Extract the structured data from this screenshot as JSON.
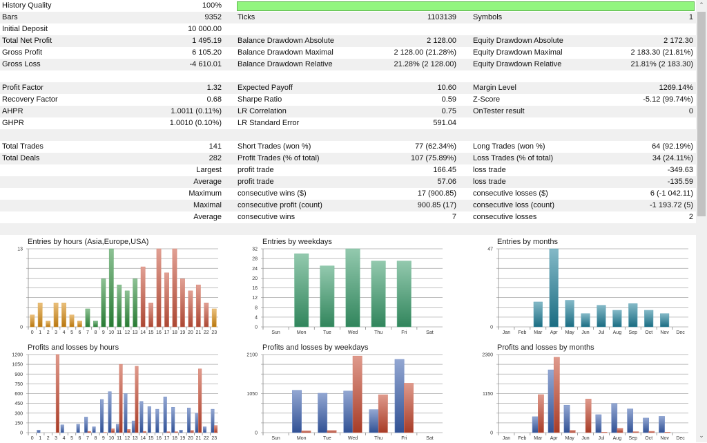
{
  "history_quality": {
    "label": "History Quality",
    "value": "100%",
    "progress_percent": 100,
    "color": "#92f57f"
  },
  "rows": [
    [
      "Bars",
      "9352",
      "Ticks",
      "1103139",
      "Symbols",
      "1"
    ],
    [
      "Initial Deposit",
      "10 000.00",
      "",
      "",
      "",
      ""
    ],
    [
      "Total Net Profit",
      "1 495.19",
      "Balance Drawdown Absolute",
      "2 128.00",
      "Equity Drawdown Absolute",
      "2 172.30"
    ],
    [
      "Gross Profit",
      "6 105.20",
      "Balance Drawdown Maximal",
      "2 128.00 (21.28%)",
      "Equity Drawdown Maximal",
      "2 183.30 (21.81%)"
    ],
    [
      "Gross Loss",
      "-4 610.01",
      "Balance Drawdown Relative",
      "21.28% (2 128.00)",
      "Equity Drawdown Relative",
      "21.81% (2 183.30)"
    ],
    [
      "",
      "",
      "",
      "",
      "",
      ""
    ],
    [
      "Profit Factor",
      "1.32",
      "Expected Payoff",
      "10.60",
      "Margin Level",
      "1269.14%"
    ],
    [
      "Recovery Factor",
      "0.68",
      "Sharpe Ratio",
      "0.59",
      "Z-Score",
      "-5.12 (99.74%)"
    ],
    [
      "AHPR",
      "1.0011 (0.11%)",
      "LR Correlation",
      "0.75",
      "OnTester result",
      "0"
    ],
    [
      "GHPR",
      "1.0010 (0.10%)",
      "LR Standard Error",
      "591.04",
      "",
      ""
    ],
    [
      "",
      "",
      "",
      "",
      "",
      ""
    ],
    [
      "Total Trades",
      "141",
      "Short Trades (won %)",
      "77 (62.34%)",
      "Long Trades (won %)",
      "64 (92.19%)"
    ],
    [
      "Total Deals",
      "282",
      "Profit Trades (% of total)",
      "107 (75.89%)",
      "Loss Trades (% of total)",
      "34 (24.11%)"
    ],
    [
      "",
      "Largest",
      "profit trade",
      "166.45",
      "loss trade",
      "-349.63"
    ],
    [
      "",
      "Average",
      "profit trade",
      "57.06",
      "loss trade",
      "-135.59"
    ],
    [
      "",
      "Maximum",
      "consecutive wins ($)",
      "17 (900.85)",
      "consecutive losses ($)",
      "6 (-1 042.11)"
    ],
    [
      "",
      "Maximal",
      "consecutive profit (count)",
      "900.85 (17)",
      "consecutive loss (count)",
      "-1 193.72 (5)"
    ],
    [
      "",
      "Average",
      "consecutive wins",
      "7",
      "consecutive losses",
      "2"
    ],
    [
      "",
      "",
      "",
      "",
      "",
      ""
    ]
  ],
  "chart_data": [
    {
      "id": "entries-hours",
      "type": "bar",
      "title": "Entries by hours (Asia,Europe,USA)",
      "categories": [
        "0",
        "1",
        "2",
        "3",
        "4",
        "5",
        "6",
        "7",
        "8",
        "9",
        "10",
        "11",
        "12",
        "13",
        "14",
        "15",
        "16",
        "17",
        "18",
        "19",
        "20",
        "21",
        "22",
        "23"
      ],
      "ylim": [
        0,
        13
      ],
      "yticks": [
        "0",
        "13"
      ],
      "series": [
        {
          "name": "entries",
          "values": [
            2,
            4,
            1,
            4,
            4,
            2,
            1,
            3,
            1,
            8,
            13,
            7,
            6,
            8,
            10,
            4,
            13,
            9,
            13,
            8,
            6,
            7,
            4,
            3
          ],
          "colors": [
            "#d98c12",
            "#d98c12",
            "#d98c12",
            "#d98c12",
            "#d98c12",
            "#d98c12",
            "#d98c12",
            "#2f8f3c",
            "#2f8f3c",
            "#2f8f3c",
            "#2f8f3c",
            "#2f8f3c",
            "#2f8f3c",
            "#2f8f3c",
            "#c9533c",
            "#c9533c",
            "#c9533c",
            "#c9533c",
            "#c9533c",
            "#c9533c",
            "#c9533c",
            "#c9533c",
            "#c9533c",
            "#d98c12"
          ]
        }
      ]
    },
    {
      "id": "entries-weekdays",
      "type": "bar",
      "title": "Entries by weekdays",
      "categories": [
        "Sun",
        "Mon",
        "Tue",
        "Wed",
        "Thu",
        "Fri",
        "Sat"
      ],
      "ylim": [
        0,
        32
      ],
      "yticks": [
        "0",
        "4",
        "8",
        "12",
        "16",
        "20",
        "24",
        "28",
        "32"
      ],
      "series": [
        {
          "name": "entries",
          "values": [
            0,
            30,
            25,
            32,
            27,
            27,
            0
          ],
          "color": "#3a9d6c"
        }
      ]
    },
    {
      "id": "entries-months",
      "type": "bar",
      "title": "Entries by months",
      "categories": [
        "Jan",
        "Feb",
        "Mar",
        "Apr",
        "May",
        "Jun",
        "Jul",
        "Aug",
        "Sep",
        "Oct",
        "Nov",
        "Dec"
      ],
      "ylim": [
        0,
        47
      ],
      "yticks": [
        "0",
        "47"
      ],
      "series": [
        {
          "name": "entries",
          "values": [
            0,
            0,
            15,
            47,
            16,
            8,
            13,
            10,
            14,
            10,
            8,
            0
          ],
          "color": "#1f7f99"
        }
      ]
    },
    {
      "id": "pl-hours",
      "type": "bar",
      "title": "Profits and losses by hours",
      "categories": [
        "0",
        "1",
        "2",
        "3",
        "4",
        "5",
        "6",
        "7",
        "8",
        "9",
        "10",
        "11",
        "12",
        "13",
        "14",
        "15",
        "16",
        "17",
        "18",
        "19",
        "20",
        "21",
        "22",
        "23"
      ],
      "ylim": [
        0,
        1200
      ],
      "yticks": [
        "0",
        "150",
        "300",
        "450",
        "600",
        "750",
        "900",
        "1050",
        "1200"
      ],
      "series": [
        {
          "name": "profits",
          "color": "#3a5fae",
          "values": [
            0,
            40,
            0,
            0,
            120,
            0,
            130,
            240,
            90,
            510,
            630,
            130,
            600,
            180,
            480,
            400,
            360,
            550,
            390,
            40,
            380,
            300,
            90,
            360
          ]
        },
        {
          "name": "losses",
          "color": "#c4472e",
          "values": [
            0,
            0,
            0,
            1200,
            0,
            0,
            0,
            20,
            0,
            5,
            60,
            1050,
            50,
            1020,
            20,
            0,
            0,
            15,
            15,
            0,
            35,
            980,
            0,
            110
          ]
        }
      ]
    },
    {
      "id": "pl-weekdays",
      "type": "bar",
      "title": "Profits and losses by weekdays",
      "categories": [
        "Sun",
        "Mon",
        "Tue",
        "Wed",
        "Thu",
        "Fri",
        "Sat"
      ],
      "ylim": [
        0,
        2100
      ],
      "yticks": [
        "0",
        "",
        "",
        "",
        "1050",
        "",
        "",
        "",
        "2100"
      ],
      "series": [
        {
          "name": "profits",
          "color": "#3a5fae",
          "values": [
            0,
            1140,
            1060,
            1120,
            620,
            1970,
            0
          ]
        },
        {
          "name": "losses",
          "color": "#c4472e",
          "values": [
            0,
            50,
            60,
            2060,
            1020,
            1330,
            0
          ]
        }
      ]
    },
    {
      "id": "pl-months",
      "type": "bar",
      "title": "Profits and losses by months",
      "categories": [
        "Jan",
        "Feb",
        "Mar",
        "Apr",
        "May",
        "Jun",
        "Jul",
        "Aug",
        "Sep",
        "Oct",
        "Nov",
        "Dec"
      ],
      "ylim": [
        0,
        2300
      ],
      "yticks": [
        "0",
        "",
        "",
        "",
        "1150",
        "",
        "",
        "",
        "2300"
      ],
      "series": [
        {
          "name": "profits",
          "color": "#3a5fae",
          "values": [
            0,
            0,
            470,
            1850,
            810,
            0,
            530,
            860,
            700,
            430,
            480,
            0
          ]
        },
        {
          "name": "losses",
          "color": "#c4472e",
          "values": [
            0,
            0,
            1120,
            2220,
            70,
            990,
            15,
            130,
            30,
            40,
            15,
            0
          ]
        }
      ]
    }
  ]
}
